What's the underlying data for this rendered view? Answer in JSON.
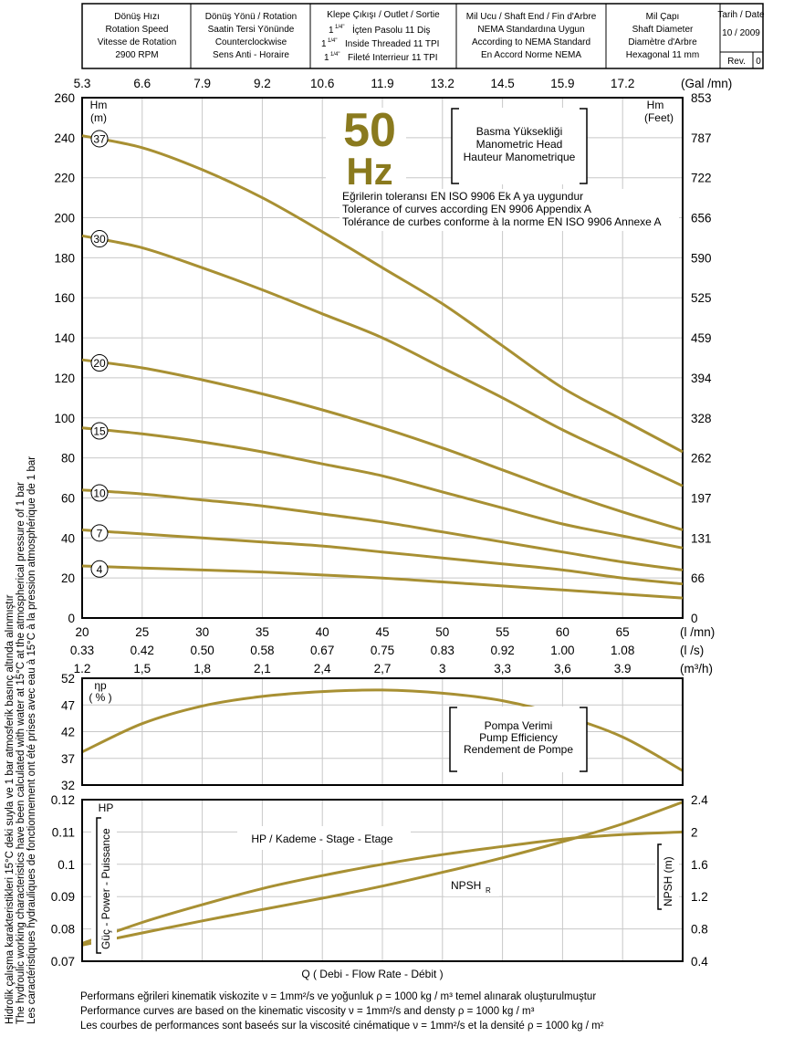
{
  "header": {
    "cells": [
      {
        "id": "speed",
        "lines": [
          "Dönüş Hızı",
          "Rotation Speed",
          "Vitesse de Rotation",
          "2900 RPM"
        ]
      },
      {
        "id": "direction",
        "lines": [
          "Dönüş Yönü / Rotation",
          "Saatin Tersi Yönünde",
          "Counterclockwise",
          "Sens Anti - Horaire"
        ]
      },
      {
        "id": "outlet",
        "title": "Klepe Çıkışı / Outlet / Sortie",
        "sup": "1/4\"",
        "lines": [
          "İçten Pasolu 11 Diş",
          "Inside Threaded 11 TPI",
          "Fileté Interrieur 11 TPI"
        ],
        "prefix": "1"
      },
      {
        "id": "shaftend",
        "lines": [
          "Mil Ucu / Shaft End / Fin d'Arbre",
          "NEMA Standardına Uygun",
          "According to NEMA Standard",
          "En Accord Norme NEMA"
        ]
      },
      {
        "id": "diameter",
        "lines": [
          "Mil Çapı",
          "Shaft Diameter",
          "Diamètre d'Arbre",
          "Hexagonal 11 mm"
        ]
      }
    ],
    "date_label": "Tarih / Date",
    "date": "10 / 2009",
    "rev_label": "Rev.",
    "rev": "0"
  },
  "side_note": [
    "Hidrolik çalışma karakteristikleri 15°C deki suyla ve 1 bar atmosferik basınç altında alınmıştır",
    "The hydroulic working characteristics have been calculated with water at 15°C at the atmospherical pressure of 1 bar",
    "Les caractéristiques hydrauliques de fonctionnement ont été prises avec eau à 15°C à la pression atmosphérique de 1 bar"
  ],
  "chart_data": [
    {
      "type": "line",
      "id": "head",
      "ylabel": [
        "Hm",
        "(m)"
      ],
      "y2label": [
        "Hm",
        "(Feet)"
      ],
      "xlim": [
        20,
        70
      ],
      "ylim": [
        0,
        260
      ],
      "yticks": [
        0,
        20,
        40,
        60,
        80,
        100,
        120,
        140,
        160,
        180,
        200,
        220,
        240,
        260
      ],
      "y2ticks": [
        "0",
        "66",
        "131",
        "197",
        "262",
        "328",
        "394",
        "459",
        "525",
        "590",
        "656",
        "722",
        "787",
        "853"
      ],
      "top_axis_label": "(Gal /mn)",
      "top_ticks": [
        "5.3",
        "6.6",
        "7.9",
        "9.2",
        "10.6",
        "11.9",
        "13.2",
        "14.5",
        "15.9",
        "17.2"
      ],
      "x_lmin_label": "(l /mn)",
      "x_lmin_ticks": [
        20,
        25,
        30,
        35,
        40,
        45,
        50,
        55,
        60,
        65
      ],
      "x_ls_label": "(l /s)",
      "x_ls_ticks": [
        "0.33",
        "0.42",
        "0.50",
        "0.58",
        "0.67",
        "0.75",
        "0.83",
        "0.92",
        "1.00",
        "1.08"
      ],
      "x_m3h_label": "(m³/h)",
      "x_m3h_ticks": [
        "1.2",
        "1,5",
        "1,8",
        "2,1",
        "2,4",
        "2,7",
        "3",
        "3,3",
        "3,6",
        "3.9"
      ],
      "badge": "50",
      "badge2": "Hz",
      "legend_box": [
        "Basma Yüksekliği",
        "Manometric Head",
        "Hauteur Manometrique"
      ],
      "tolerance": [
        "Eğrilerin toleransı EN ISO 9906 Ek A ya uygundur",
        "Tolerance of curves according EN 9906 Appendix A",
        "Tolérance de curbes conforme à la norme EN ISO 9906 Annexe A"
      ],
      "x": [
        20,
        25,
        30,
        35,
        40,
        45,
        50,
        55,
        60,
        65,
        70
      ],
      "series": [
        {
          "name": "37",
          "values": [
            241,
            235,
            224,
            210,
            193,
            175,
            157,
            136,
            115,
            99,
            83
          ]
        },
        {
          "name": "30",
          "values": [
            191,
            185,
            175,
            164,
            152,
            140,
            125,
            110,
            94,
            80,
            66
          ]
        },
        {
          "name": "20",
          "values": [
            129,
            125,
            119,
            112,
            104,
            95,
            85,
            74,
            63,
            53,
            44
          ]
        },
        {
          "name": "15",
          "values": [
            95,
            92,
            88,
            83,
            77,
            71,
            63,
            55,
            47,
            41,
            35
          ]
        },
        {
          "name": "10",
          "values": [
            64,
            62,
            59,
            56,
            52,
            48,
            43,
            38,
            33,
            28,
            24
          ]
        },
        {
          "name": "7",
          "values": [
            44,
            42,
            40,
            38,
            36,
            33,
            30,
            27,
            24,
            20,
            17
          ]
        },
        {
          "name": "4",
          "values": [
            26,
            25,
            24,
            23,
            21.5,
            20,
            18,
            16,
            14,
            12,
            10
          ]
        }
      ],
      "curve_color": "#a89033"
    },
    {
      "type": "line",
      "id": "efficiency",
      "ylabel": [
        "ηp",
        "( % )"
      ],
      "xlim": [
        20,
        70
      ],
      "ylim": [
        32,
        52
      ],
      "yticks": [
        32,
        37,
        42,
        47,
        52
      ],
      "legend_box": [
        "Pompa Verimi",
        "Pump Efficiency",
        "Rendement de Pompe"
      ],
      "x": [
        20,
        25,
        30,
        35,
        40,
        45,
        50,
        55,
        60,
        65,
        70
      ],
      "series": [
        {
          "values": [
            38.2,
            43.5,
            46.8,
            48.6,
            49.5,
            49.8,
            49.2,
            47.8,
            45,
            41,
            34.7
          ]
        }
      ]
    },
    {
      "type": "line",
      "id": "power_npsh",
      "ylabel": "Güç - Power - Puissance",
      "ylabel_top": "HP",
      "y2label": "NPSH (m)",
      "xlim": [
        20,
        70
      ],
      "ylim": [
        0.07,
        0.12
      ],
      "yticks": [
        "0.07",
        "0.08",
        "0.09",
        "0.1",
        "0.11",
        "0.12"
      ],
      "y2lim": [
        0.4,
        2.4
      ],
      "y2ticks": [
        "0.4",
        "0.8",
        "1.2",
        "1.6",
        "2",
        "2.4"
      ],
      "xlabel": "Q    ( Debi - Flow Rate - Débit )",
      "power_label": "HP / Kademe - Stage - Etage",
      "npsh_label": "NPSH",
      "npsh_sub": "R",
      "x": [
        20,
        25,
        30,
        35,
        40,
        45,
        50,
        55,
        60,
        65,
        70
      ],
      "series": [
        {
          "axis": "left",
          "values": [
            0.0755,
            0.082,
            0.0875,
            0.0925,
            0.0965,
            0.1,
            0.103,
            0.1055,
            0.1078,
            0.1092,
            0.11
          ]
        },
        {
          "axis": "right",
          "values": [
            0.6,
            0.75,
            0.9,
            1.04,
            1.18,
            1.33,
            1.5,
            1.68,
            1.88,
            2.1,
            2.37
          ]
        }
      ]
    }
  ],
  "footer": [
    "Performans eğrileri kinematik viskozite ν = 1mm²/s ve yoğunluk ρ = 1000 kg / m³ temel alınarak oluşturulmuştur",
    "Performance curves are based on the kinematic viscosity ν = 1mm²/s and densty ρ = 1000 kg / m³",
    "Les courbes de performances sont baseés sur la viscosité cinématique ν = 1mm²/s et la densité ρ = 1000 kg / m²"
  ]
}
